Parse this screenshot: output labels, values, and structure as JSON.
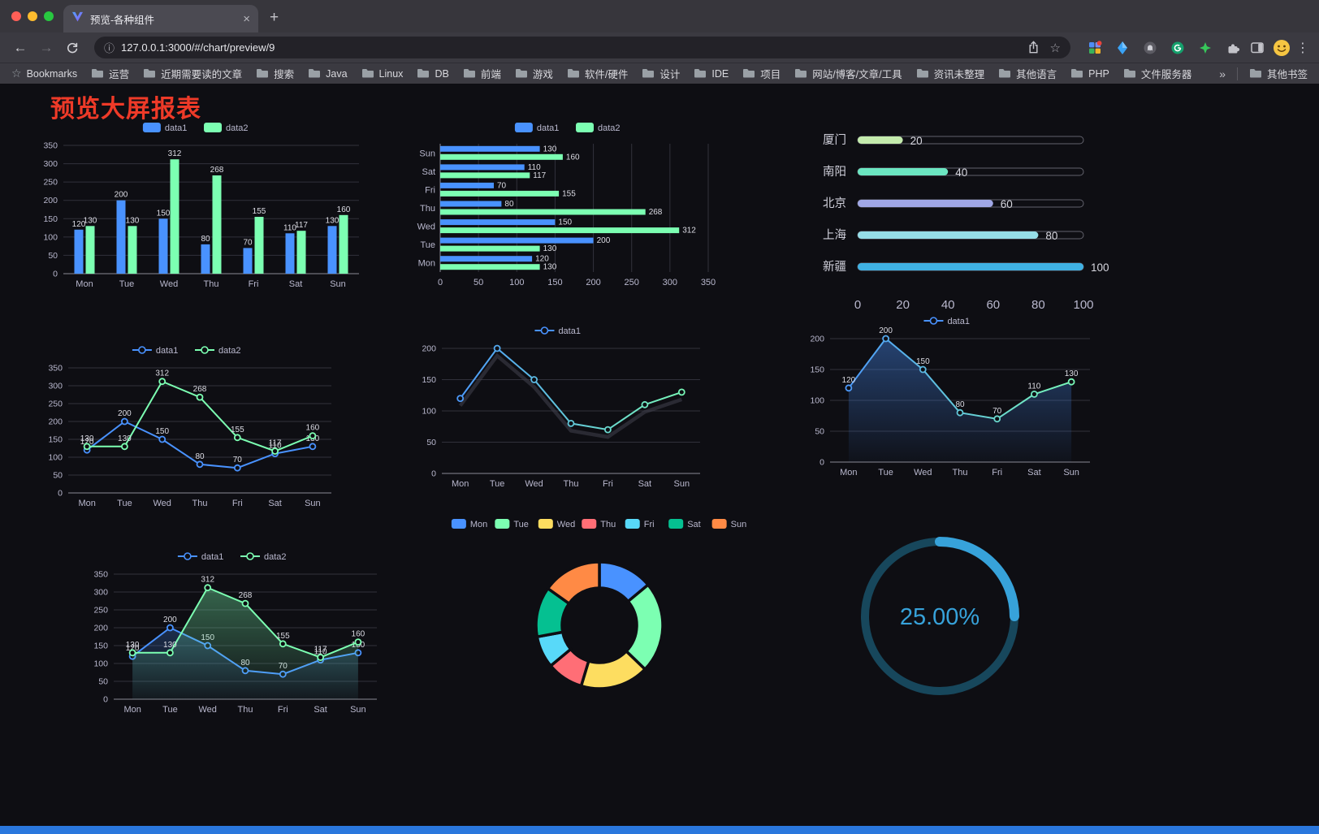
{
  "browser": {
    "tab_title": "预览-各种组件",
    "url": "127.0.0.1:3000/#/chart/preview/9",
    "glyphs": {
      "close": "×",
      "new_tab": "+",
      "back": "←",
      "forward": "→",
      "info": "ⓘ",
      "star": "☆",
      "overflow": "»",
      "menu": "⋮",
      "bookmarks_label": "Bookmarks",
      "other_bookmarks": "其他书签"
    },
    "bookmarks": [
      "运营",
      "近期需要读的文章",
      "搜索",
      "Java",
      "Linux",
      "DB",
      "前端",
      "游戏",
      "软件/硬件",
      "设计",
      "IDE",
      "项目",
      "网站/博客/文章/工具",
      "资讯未整理",
      "其他语言",
      "PHP",
      "文件服务器"
    ]
  },
  "page": {
    "title": "预览大屏报表"
  },
  "colors": {
    "series_blue": "#4992ff",
    "series_green": "#7cffb2",
    "title_red": "#ee3a28",
    "gauge_blue": "#37a2da"
  },
  "chart_data": [
    {
      "id": "bar-vertical",
      "type": "bar",
      "legend": [
        "data1",
        "data2"
      ],
      "categories": [
        "Mon",
        "Tue",
        "Wed",
        "Thu",
        "Fri",
        "Sat",
        "Sun"
      ],
      "series": [
        {
          "name": "data1",
          "color": "#4992ff",
          "values": [
            120,
            200,
            150,
            80,
            70,
            110,
            130
          ]
        },
        {
          "name": "data2",
          "color": "#7cffb2",
          "values": [
            130,
            130,
            312,
            268,
            155,
            117,
            160
          ]
        }
      ],
      "ylim": [
        0,
        350
      ],
      "yticks": [
        0,
        50,
        100,
        150,
        200,
        250,
        300,
        350
      ]
    },
    {
      "id": "bar-horizontal",
      "type": "hbar",
      "legend": [
        "data1",
        "data2"
      ],
      "categories": [
        "Mon",
        "Tue",
        "Wed",
        "Thu",
        "Fri",
        "Sat",
        "Sun"
      ],
      "series": [
        {
          "name": "data1",
          "color": "#4992ff",
          "values": [
            120,
            200,
            150,
            80,
            70,
            110,
            130
          ]
        },
        {
          "name": "data2",
          "color": "#7cffb2",
          "values": [
            130,
            130,
            312,
            268,
            155,
            117,
            160
          ]
        }
      ],
      "xlim": [
        0,
        350
      ],
      "xticks": [
        0,
        50,
        100,
        150,
        200,
        250,
        300,
        350
      ]
    },
    {
      "id": "city-progress",
      "type": "progress",
      "max": 100,
      "items": [
        {
          "label": "厦门",
          "value": 20,
          "color": "#c4ebad"
        },
        {
          "label": "南阳",
          "value": 40,
          "color": "#6be6c1"
        },
        {
          "label": "北京",
          "value": 60,
          "color": "#a0a7e6"
        },
        {
          "label": "上海",
          "value": 80,
          "color": "#96dee8"
        },
        {
          "label": "新疆",
          "value": 100,
          "color": "#3fb1e3"
        }
      ],
      "xticks": [
        0,
        20,
        40,
        60,
        80,
        100
      ]
    },
    {
      "id": "line-two-series",
      "type": "line",
      "show_labels": true,
      "legend": [
        "data1",
        "data2"
      ],
      "categories": [
        "Mon",
        "Tue",
        "Wed",
        "Thu",
        "Fri",
        "Sat",
        "Sun"
      ],
      "series": [
        {
          "name": "data1",
          "color": "#4992ff",
          "values": [
            120,
            200,
            150,
            80,
            70,
            110,
            130
          ]
        },
        {
          "name": "data2",
          "color": "#7cffb2",
          "values": [
            130,
            130,
            312,
            268,
            155,
            117,
            160
          ]
        }
      ],
      "ylim": [
        0,
        350
      ],
      "yticks": [
        0,
        50,
        100,
        150,
        200,
        250,
        300,
        350
      ]
    },
    {
      "id": "line-gradient",
      "type": "line",
      "show_labels": false,
      "shadow": true,
      "legend": [
        "data1"
      ],
      "categories": [
        "Mon",
        "Tue",
        "Wed",
        "Thu",
        "Fri",
        "Sat",
        "Sun"
      ],
      "series": [
        {
          "name": "data1",
          "gradient": [
            "#4992ff",
            "#7cffb2"
          ],
          "values": [
            120,
            200,
            150,
            80,
            70,
            110,
            130
          ]
        }
      ],
      "ylim": [
        0,
        200
      ],
      "yticks": [
        0,
        50,
        100,
        150,
        200
      ]
    },
    {
      "id": "line-area",
      "type": "line",
      "show_labels": true,
      "legend": [
        "data1"
      ],
      "categories": [
        "Mon",
        "Tue",
        "Wed",
        "Thu",
        "Fri",
        "Sat",
        "Sun"
      ],
      "series": [
        {
          "name": "data1",
          "gradient": [
            "#4992ff",
            "#7cffb2"
          ],
          "area": true,
          "values": [
            120,
            200,
            150,
            80,
            70,
            110,
            130
          ]
        }
      ],
      "ylim": [
        0,
        200
      ],
      "yticks": [
        0,
        50,
        100,
        150,
        200
      ]
    },
    {
      "id": "line-two-area",
      "type": "line",
      "show_labels": true,
      "legend": [
        "data1",
        "data2"
      ],
      "categories": [
        "Mon",
        "Tue",
        "Wed",
        "Thu",
        "Fri",
        "Sat",
        "Sun"
      ],
      "series": [
        {
          "name": "data1",
          "color": "#4992ff",
          "area": true,
          "values": [
            120,
            200,
            150,
            80,
            70,
            110,
            130
          ]
        },
        {
          "name": "data2",
          "color": "#7cffb2",
          "area": true,
          "values": [
            130,
            130,
            312,
            268,
            155,
            117,
            160
          ]
        }
      ],
      "ylim": [
        0,
        350
      ],
      "yticks": [
        0,
        50,
        100,
        150,
        200,
        250,
        300,
        350
      ]
    },
    {
      "id": "weekday-donut",
      "type": "pie",
      "legend": [
        "Mon",
        "Tue",
        "Wed",
        "Thu",
        "Fri",
        "Sat",
        "Sun"
      ],
      "items": [
        {
          "label": "Mon",
          "value": 120,
          "color": "#4992ff"
        },
        {
          "label": "Tue",
          "value": 200,
          "color": "#7cffb2"
        },
        {
          "label": "Wed",
          "value": 150,
          "color": "#fddd60"
        },
        {
          "label": "Thu",
          "value": 80,
          "color": "#ff6e76"
        },
        {
          "label": "Fri",
          "value": 70,
          "color": "#58d9f9"
        },
        {
          "label": "Sat",
          "value": 110,
          "color": "#05c091"
        },
        {
          "label": "Sun",
          "value": 130,
          "color": "#ff8a45"
        }
      ]
    },
    {
      "id": "percent-gauge",
      "type": "gauge",
      "percent": 25,
      "label": "25.00%",
      "color": "#37a2da",
      "track_color": "#17475c"
    }
  ]
}
